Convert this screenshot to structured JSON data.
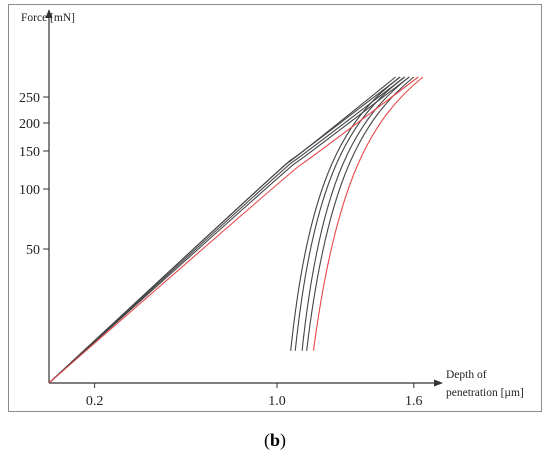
{
  "caption": {
    "open": "(",
    "letter": "b",
    "close": ")"
  },
  "chart_data": {
    "type": "line",
    "title": "",
    "ylabel": "Force [mN]",
    "xlabel_line1": "Depth of",
    "xlabel_line2": "penetration [µm]",
    "x_ticks": [
      {
        "value": 0.2,
        "label": "0.2"
      },
      {
        "value": 1.0,
        "label": "1.0"
      },
      {
        "value": 1.6,
        "label": "1.6"
      }
    ],
    "y_ticks": [
      {
        "value": 50,
        "label": "50"
      },
      {
        "value": 100,
        "label": "100"
      },
      {
        "value": 150,
        "label": "150"
      },
      {
        "value": 200,
        "label": "200"
      },
      {
        "value": 250,
        "label": "250"
      }
    ],
    "y_scale": "nonlinear (tick spacing compressed toward top)",
    "grid": false,
    "legend": "none",
    "colors": {
      "gray_curves": "#444444",
      "red_curve": "#e8474a"
    },
    "series": [
      {
        "color": "gray",
        "loading": [
          [
            0.0,
            0
          ],
          [
            1.05,
            135
          ],
          [
            1.52,
            290
          ]
        ],
        "unloading": [
          [
            1.54,
            290
          ],
          [
            1.3,
            210
          ],
          [
            1.14,
            115
          ],
          [
            1.06,
            12
          ]
        ]
      },
      {
        "color": "gray",
        "loading": [
          [
            0.0,
            0
          ],
          [
            1.06,
            138
          ],
          [
            1.54,
            290
          ]
        ],
        "unloading": [
          [
            1.56,
            290
          ],
          [
            1.32,
            210
          ],
          [
            1.16,
            115
          ],
          [
            1.08,
            12
          ]
        ]
      },
      {
        "color": "gray",
        "loading": [
          [
            0.0,
            0
          ],
          [
            1.07,
            136
          ],
          [
            1.56,
            290
          ]
        ],
        "unloading": [
          [
            1.58,
            290
          ],
          [
            1.35,
            210
          ],
          [
            1.19,
            115
          ],
          [
            1.11,
            12
          ]
        ]
      },
      {
        "color": "gray",
        "loading": [
          [
            0.0,
            0
          ],
          [
            1.08,
            134
          ],
          [
            1.58,
            290
          ]
        ],
        "unloading": [
          [
            1.6,
            290
          ],
          [
            1.38,
            210
          ],
          [
            1.22,
            115
          ],
          [
            1.13,
            12
          ]
        ]
      },
      {
        "color": "red",
        "loading": [
          [
            0.0,
            0
          ],
          [
            1.1,
            131
          ],
          [
            1.62,
            290
          ]
        ],
        "unloading": [
          [
            1.64,
            290
          ],
          [
            1.42,
            210
          ],
          [
            1.26,
            115
          ],
          [
            1.16,
            12
          ]
        ]
      }
    ]
  }
}
